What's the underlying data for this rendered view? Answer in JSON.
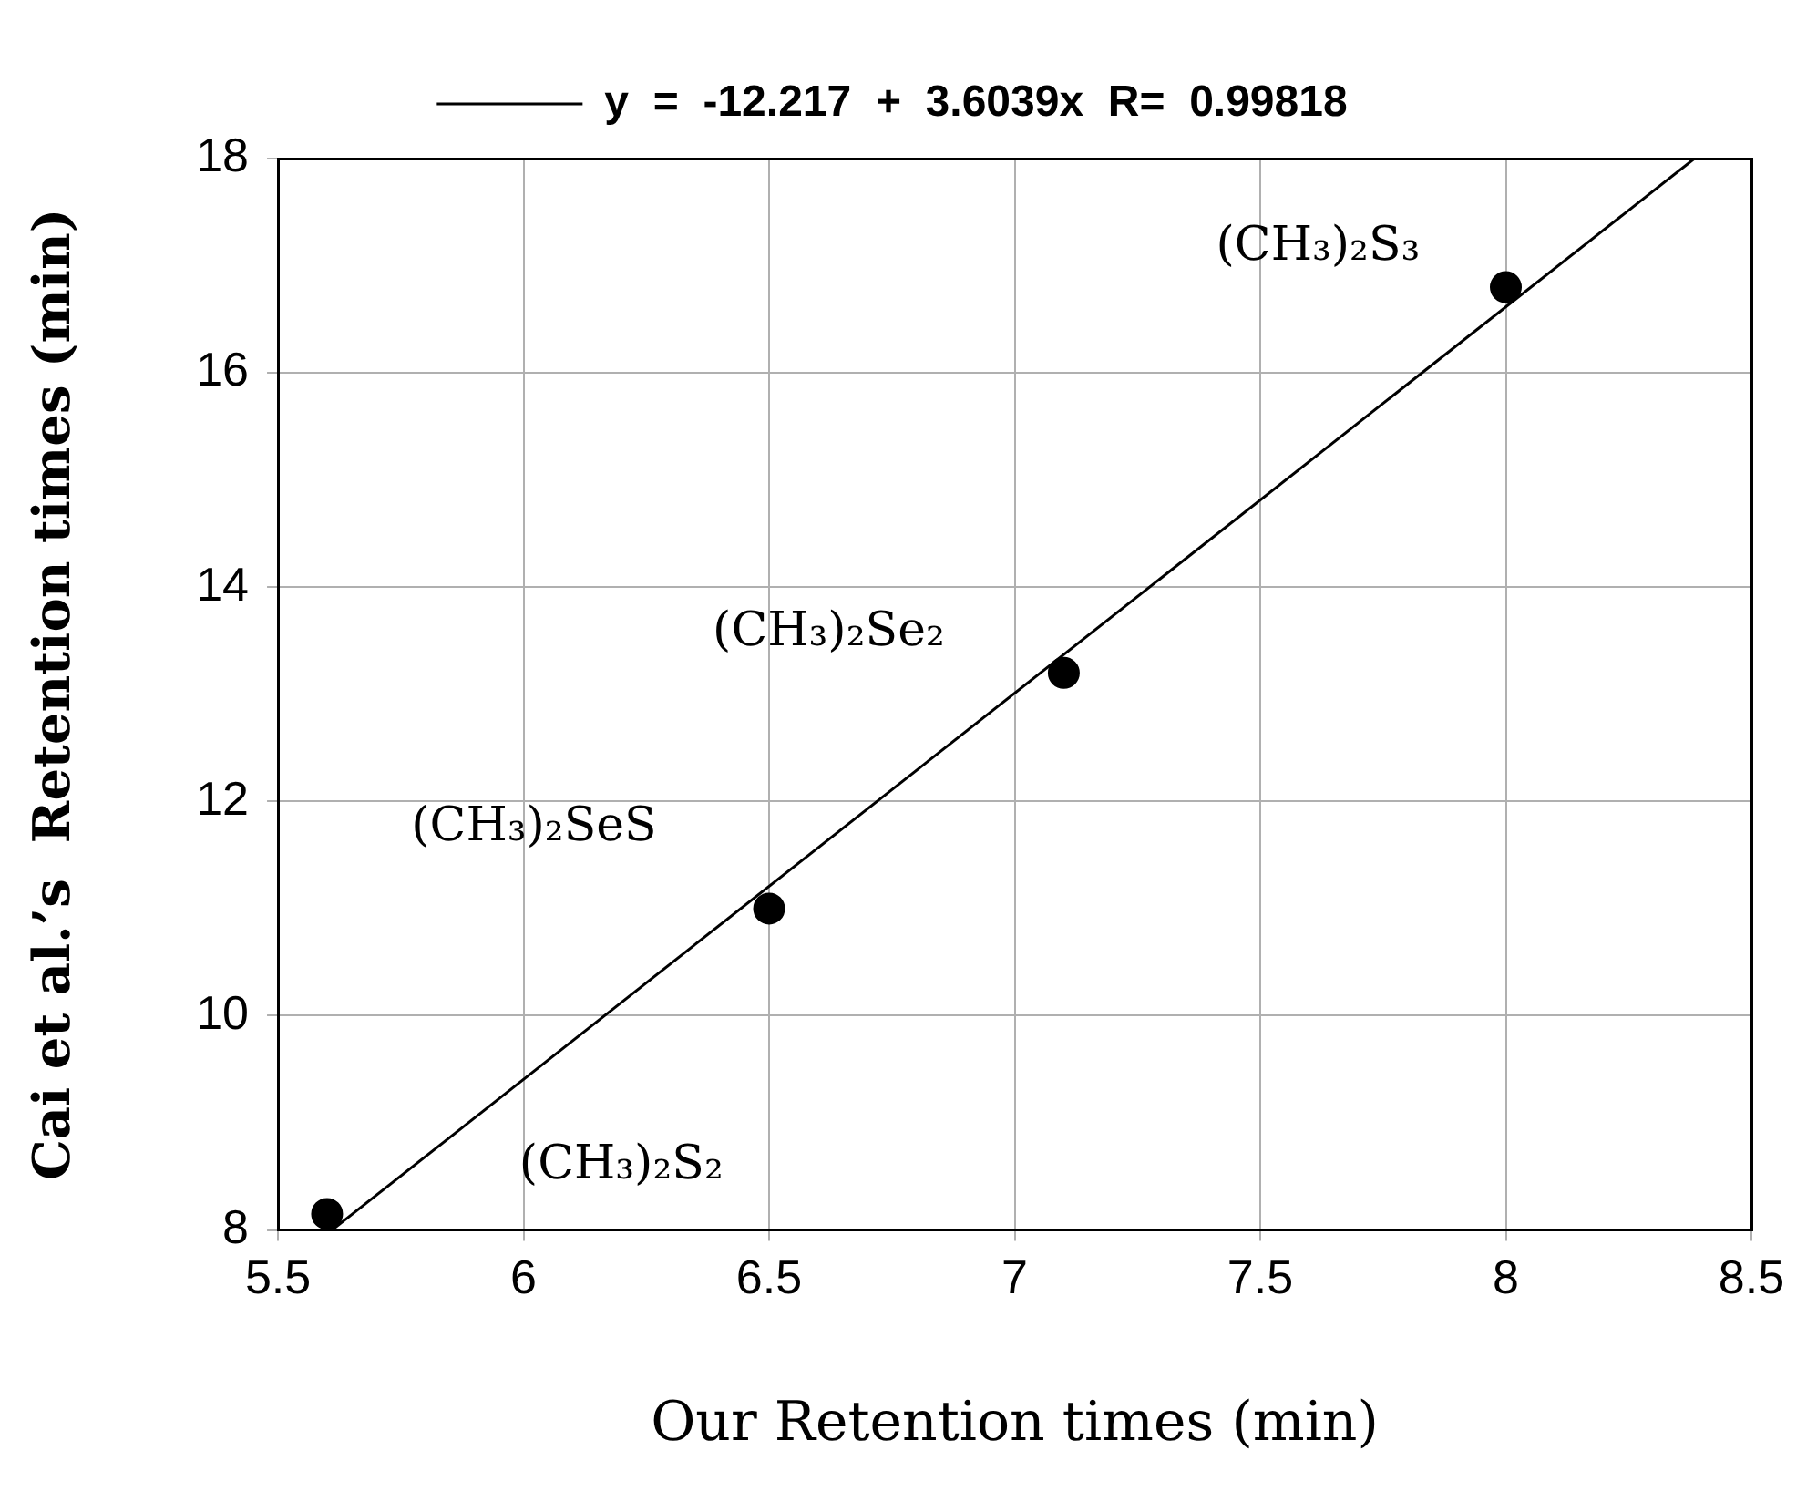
{
  "chart_data": {
    "type": "scatter",
    "xlabel": "Our Retention times (min)",
    "ylabel": "Cai et al.’s  Retention times (min)",
    "xlim": [
      5.5,
      8.5
    ],
    "xticks": [
      5.5,
      6,
      6.5,
      7,
      7.5,
      8,
      8.5
    ],
    "ylim": [
      8,
      18
    ],
    "yticks": [
      8,
      10,
      12,
      14,
      16,
      18
    ],
    "grid": true,
    "legend": "top",
    "series": [
      {
        "color": "#000000",
        "marker": "circle",
        "x": [
          5.6,
          6.5,
          7.1,
          8.0
        ],
        "values": [
          8.15,
          11.0,
          13.2,
          16.8
        ]
      },
      {
        "type": "line",
        "name": "y  =  -12.217  +  3.6039x  R=  0.99818",
        "color": "#000000",
        "marker": "none",
        "line_style": "solid",
        "x": [
          5.61,
          8.384
        ],
        "values": [
          8,
          18
        ]
      }
    ],
    "annotations": [
      {
        "text": "(CH₃)₂S₃",
        "x": 8.0,
        "y": 16.8
      },
      {
        "text": "(CH₃)₂Se₂",
        "x": 7.1,
        "y": 13.2
      },
      {
        "text": "(CH₃)₂SeS",
        "x": 6.5,
        "y": 11.0
      },
      "(CH₃)₂S₂"
    ]
  }
}
